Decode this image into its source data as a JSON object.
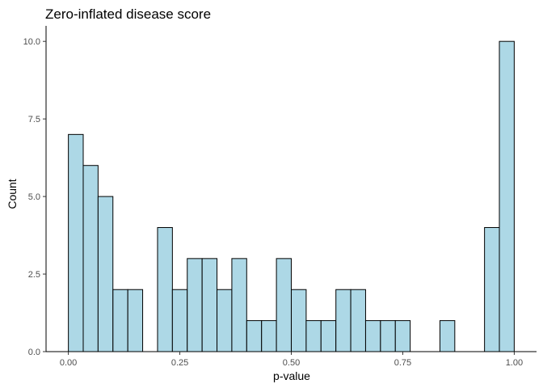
{
  "chart_data": {
    "type": "bar",
    "title": "Zero-inflated disease score",
    "xlabel": "p-value",
    "ylabel": "Count",
    "xlim": [
      -0.05,
      1.05
    ],
    "ylim": [
      0,
      10.5
    ],
    "x_ticks": [
      0.0,
      0.25,
      0.5,
      0.75,
      1.0
    ],
    "x_tick_labels": [
      "0.00",
      "0.25",
      "0.50",
      "0.75",
      "1.00"
    ],
    "y_ticks": [
      0,
      2.5,
      5.0,
      7.5,
      10.0
    ],
    "y_tick_labels": [
      "0.0",
      "2.5",
      "5.0",
      "7.5",
      "10.0"
    ],
    "bin_width": 0.0333,
    "bin_centers": [
      0.0167,
      0.05,
      0.0833,
      0.1167,
      0.15,
      0.1833,
      0.2167,
      0.25,
      0.2833,
      0.3167,
      0.35,
      0.3833,
      0.4167,
      0.45,
      0.4833,
      0.5167,
      0.55,
      0.5833,
      0.6167,
      0.65,
      0.6833,
      0.7167,
      0.75,
      0.7833,
      0.8167,
      0.85,
      0.8833,
      0.9167,
      0.95,
      0.9833
    ],
    "values": [
      7,
      6,
      5,
      2,
      2,
      0,
      4,
      2,
      3,
      3,
      2,
      3,
      1,
      1,
      3,
      2,
      1,
      1,
      2,
      2,
      1,
      1,
      1,
      0,
      0,
      1,
      0,
      0,
      4,
      10
    ],
    "fill_color": "#ADD8E6",
    "edge_color": "#000000",
    "grid": false
  }
}
